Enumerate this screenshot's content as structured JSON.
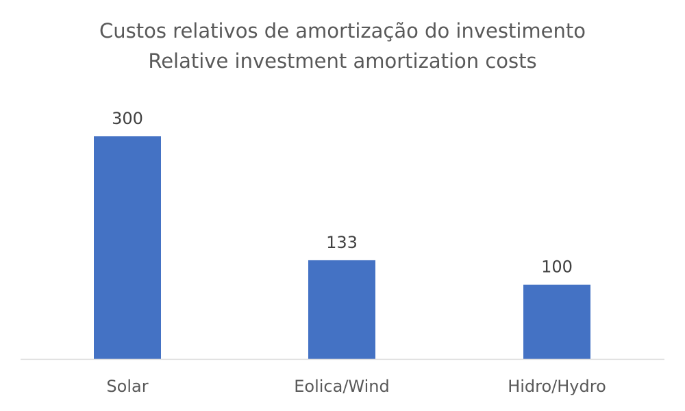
{
  "chart_data": {
    "type": "bar",
    "title": "Custos relativos de amortização do investimento",
    "subtitle": "Relative investment amortization costs",
    "categories": [
      "Solar",
      "Eolica/Wind",
      "Hidro/Hydro"
    ],
    "values": [
      300,
      133,
      100
    ],
    "ylim": [
      0,
      300
    ],
    "grid": false,
    "legend": "none",
    "bar_color": "#4472C4",
    "axis_color": "#D9D9D9"
  }
}
